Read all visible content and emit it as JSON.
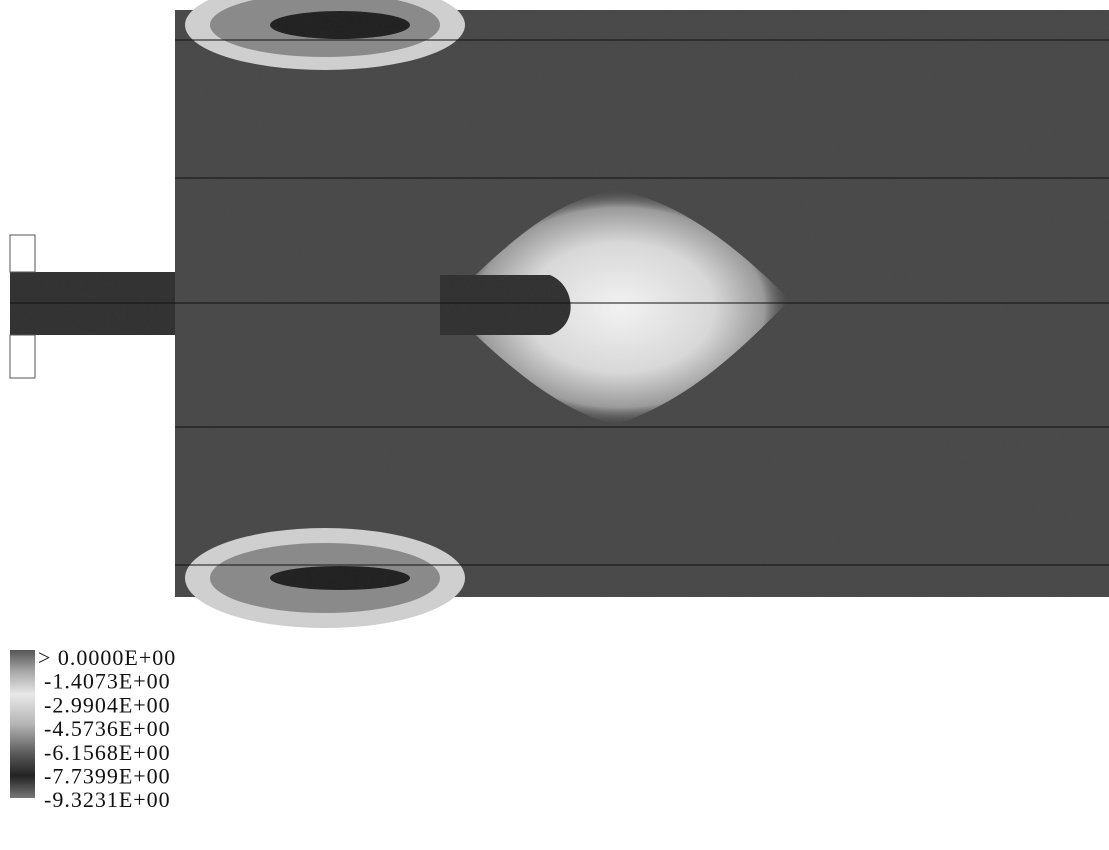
{
  "legend": {
    "levels": [
      "> 0.0000E+00",
      "-1.4073E+00",
      "-2.9904E+00",
      "-4.5736E+00",
      "-6.1568E+00",
      "-7.7399E+00",
      "-9.3231E+00"
    ]
  }
}
